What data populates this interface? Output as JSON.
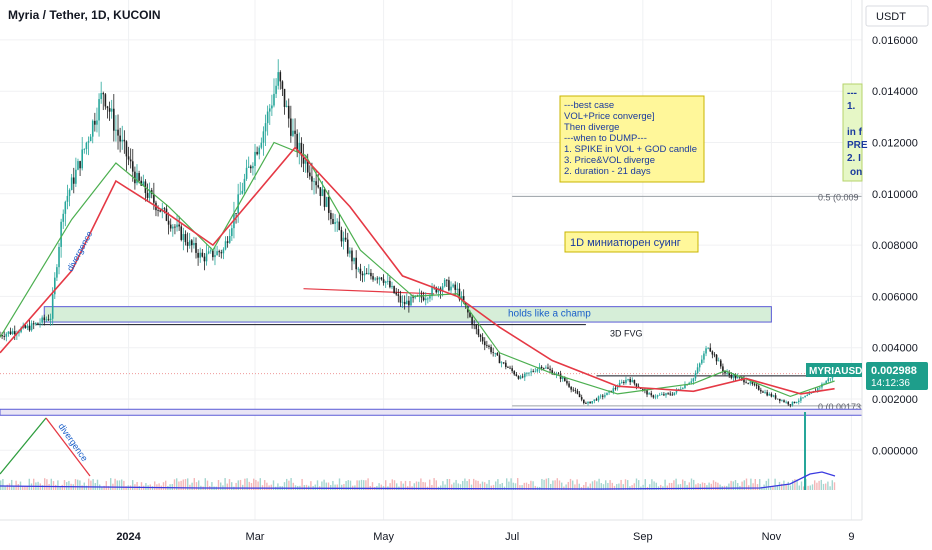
{
  "header": {
    "symbol_title": "Myria / Tether, 1D, KUCOIN",
    "currency_label": "USDT"
  },
  "colors": {
    "up_candle": "#26a69a",
    "down_candle": "#1f1f1f",
    "ema_fast": "#4caf50",
    "ema_slow": "#e53945",
    "zone_fill": "#d6eed8",
    "zone_border": "#5b5bd6",
    "note_fill": "#fff79a",
    "note_border": "#c8b400",
    "price_badge": "#1e9e8b",
    "volume_line": "#3a3ae0"
  },
  "chart_data": {
    "type": "candlestick",
    "title": "Myria / Tether, 1D, KUCOIN",
    "ylabel": "USDT",
    "ylim": [
      -0.0011,
      0.0168
    ],
    "y_ticks": [
      "0.016000",
      "0.014000",
      "0.012000",
      "0.010000",
      "0.008000",
      "0.006000",
      "0.004000",
      "0.002000",
      "0.000000"
    ],
    "y_tick_values": [
      0.016,
      0.014,
      0.012,
      0.01,
      0.008,
      0.006,
      0.004,
      0.002,
      0.0
    ],
    "x_ticks": [
      "2024",
      "Mar",
      "May",
      "Jul",
      "Sep",
      "Nov",
      "9"
    ],
    "x_tick_dates": [
      "2024-01-01",
      "2024-03-01",
      "2024-05-01",
      "2024-07-01",
      "2024-09-01",
      "2024-11-01",
      "2024-12-09"
    ],
    "x_range": [
      "2023-11-01",
      "2024-12-14"
    ],
    "price_series": [
      {
        "date": "2023-11-01",
        "close": 0.0045
      },
      {
        "date": "2023-11-15",
        "close": 0.0048
      },
      {
        "date": "2023-11-25",
        "close": 0.0052
      },
      {
        "date": "2023-12-01",
        "close": 0.0095
      },
      {
        "date": "2023-12-10",
        "close": 0.0115
      },
      {
        "date": "2023-12-20",
        "close": 0.014
      },
      {
        "date": "2023-12-26",
        "close": 0.0125
      },
      {
        "date": "2024-01-05",
        "close": 0.0105
      },
      {
        "date": "2024-01-15",
        "close": 0.0095
      },
      {
        "date": "2024-01-25",
        "close": 0.0085
      },
      {
        "date": "2024-02-05",
        "close": 0.0075
      },
      {
        "date": "2024-02-15",
        "close": 0.0078
      },
      {
        "date": "2024-02-25",
        "close": 0.0105
      },
      {
        "date": "2024-03-05",
        "close": 0.0125
      },
      {
        "date": "2024-03-12",
        "close": 0.0145
      },
      {
        "date": "2024-03-20",
        "close": 0.012
      },
      {
        "date": "2024-03-30",
        "close": 0.0105
      },
      {
        "date": "2024-04-10",
        "close": 0.0085
      },
      {
        "date": "2024-04-20",
        "close": 0.0068
      },
      {
        "date": "2024-04-30",
        "close": 0.0068
      },
      {
        "date": "2024-05-10",
        "close": 0.0057
      },
      {
        "date": "2024-05-20",
        "close": 0.006
      },
      {
        "date": "2024-05-30",
        "close": 0.0065
      },
      {
        "date": "2024-06-05",
        "close": 0.0062
      },
      {
        "date": "2024-06-15",
        "close": 0.0045
      },
      {
        "date": "2024-06-25",
        "close": 0.0035
      },
      {
        "date": "2024-07-05",
        "close": 0.0028
      },
      {
        "date": "2024-07-15",
        "close": 0.0033
      },
      {
        "date": "2024-07-25",
        "close": 0.0028
      },
      {
        "date": "2024-08-05",
        "close": 0.0018
      },
      {
        "date": "2024-08-15",
        "close": 0.0022
      },
      {
        "date": "2024-08-25",
        "close": 0.0028
      },
      {
        "date": "2024-09-05",
        "close": 0.0021
      },
      {
        "date": "2024-09-15",
        "close": 0.0022
      },
      {
        "date": "2024-09-25",
        "close": 0.0028
      },
      {
        "date": "2024-10-02",
        "close": 0.0041
      },
      {
        "date": "2024-10-10",
        "close": 0.003
      },
      {
        "date": "2024-10-20",
        "close": 0.0027
      },
      {
        "date": "2024-10-30",
        "close": 0.0022
      },
      {
        "date": "2024-11-10",
        "close": 0.0018
      },
      {
        "date": "2024-11-20",
        "close": 0.0022
      },
      {
        "date": "2024-12-01",
        "close": 0.002988
      }
    ],
    "ema_fast": [
      {
        "date": "2023-11-01",
        "value": 0.0044
      },
      {
        "date": "2023-12-05",
        "value": 0.009
      },
      {
        "date": "2023-12-26",
        "value": 0.0112
      },
      {
        "date": "2024-01-20",
        "value": 0.0095
      },
      {
        "date": "2024-02-10",
        "value": 0.0078
      },
      {
        "date": "2024-03-10",
        "value": 0.012
      },
      {
        "date": "2024-03-25",
        "value": 0.0115
      },
      {
        "date": "2024-04-20",
        "value": 0.0078
      },
      {
        "date": "2024-05-15",
        "value": 0.006
      },
      {
        "date": "2024-06-05",
        "value": 0.0061
      },
      {
        "date": "2024-06-25",
        "value": 0.0038
      },
      {
        "date": "2024-07-20",
        "value": 0.003
      },
      {
        "date": "2024-08-20",
        "value": 0.0022
      },
      {
        "date": "2024-09-25",
        "value": 0.0026
      },
      {
        "date": "2024-10-10",
        "value": 0.0031
      },
      {
        "date": "2024-11-10",
        "value": 0.0021
      },
      {
        "date": "2024-12-01",
        "value": 0.0027
      }
    ],
    "ema_slow": [
      {
        "date": "2023-11-01",
        "value": 0.0038
      },
      {
        "date": "2023-12-05",
        "value": 0.007
      },
      {
        "date": "2023-12-26",
        "value": 0.0105
      },
      {
        "date": "2024-01-20",
        "value": 0.0092
      },
      {
        "date": "2024-02-10",
        "value": 0.008
      },
      {
        "date": "2024-03-20",
        "value": 0.0118
      },
      {
        "date": "2024-04-15",
        "value": 0.0095
      },
      {
        "date": "2024-05-10",
        "value": 0.0068
      },
      {
        "date": "2024-06-05",
        "value": 0.006
      },
      {
        "date": "2024-06-25",
        "value": 0.0048
      },
      {
        "date": "2024-07-20",
        "value": 0.0035
      },
      {
        "date": "2024-08-20",
        "value": 0.0025
      },
      {
        "date": "2024-09-25",
        "value": 0.0023
      },
      {
        "date": "2024-10-20",
        "value": 0.0028
      },
      {
        "date": "2024-11-15",
        "value": 0.0022
      },
      {
        "date": "2024-12-01",
        "value": 0.0024
      }
    ],
    "zones": [
      {
        "label": "holds like a champ",
        "start": "2023-11-22",
        "end": "2024-11-01",
        "top": 0.0056,
        "bottom": 0.005
      },
      {
        "label": "3D FVG",
        "start": "2023-11-18",
        "end": "2024-08-05",
        "top": 0.0049,
        "bottom": 0.0049
      }
    ],
    "levels": [
      {
        "label": "0.5 (0.009",
        "value": 0.0099,
        "start": "2024-07-01"
      },
      {
        "label": "0 (0.00173",
        "value": 0.00173,
        "start": "2024-07-01"
      },
      {
        "label": "",
        "value": 0.0029,
        "start": "2024-08-10"
      }
    ],
    "annotations": {
      "box_note_lines": [
        "---best case",
        "VOL+Price converge]",
        "Then diverge",
        "---when to DUMP---",
        "1. SPIKE in VOL + GOD candle",
        "3. Price&VOL diverge",
        "2. duration - 21 days"
      ],
      "swing_label": "1D миниатюрен суинг",
      "divergence_label": "divergence",
      "divergence_label_volume": "divergence",
      "cut_note_lines": [
        "---",
        "1.",
        "",
        "in f",
        "PRE",
        "2. I",
        "on"
      ]
    },
    "last_price": {
      "ticker": "MYRIAUSDT",
      "value": "0.002988",
      "countdown": "14:12:36"
    }
  }
}
